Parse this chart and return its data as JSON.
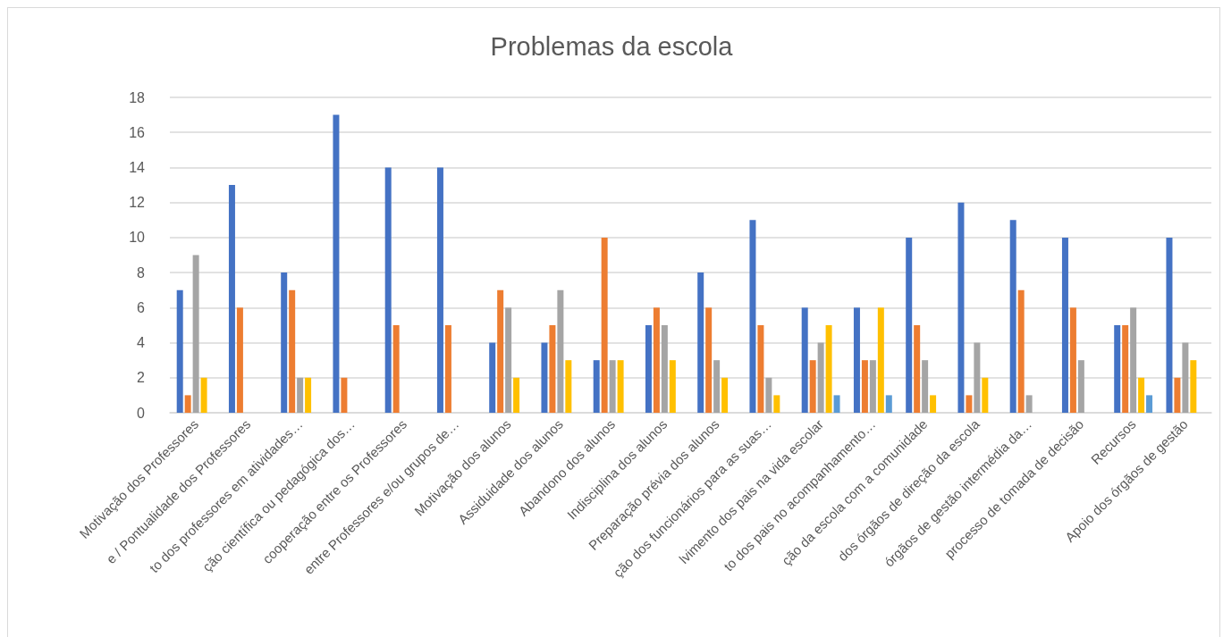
{
  "chart_data": {
    "type": "bar",
    "title": "Problemas da escola",
    "categories": [
      "Motivação dos Professores",
      "e / Pontualidade dos Professores",
      "to dos professores em atividades…",
      "ção científica ou pedagógica dos…",
      "cooperação entre os Professores",
      "entre Professores e/ou grupos de…",
      "Motivação dos alunos",
      "Assiduidade dos alunos",
      "Abandono dos alunos",
      "Indisciplina dos alunos",
      "Preparação prévia dos alunos",
      "ção dos funcionários para as suas…",
      "lvimento dos pais na vida escolar",
      "to dos pais no acompanhamento…",
      "ção da escola com a comunidade",
      "dos órgãos de direção da escola",
      "órgãos de gestão intermédia da…",
      "processo de tomada de decisão",
      "Recursos",
      "Apoio dos órgãos de gestão"
    ],
    "series": [
      {
        "color": "#4472c4",
        "values": [
          7,
          13,
          8,
          17,
          14,
          14,
          4,
          4,
          3,
          5,
          8,
          11,
          6,
          6,
          10,
          12,
          11,
          10,
          5,
          10
        ]
      },
      {
        "color": "#ed7d31",
        "values": [
          1,
          6,
          7,
          2,
          5,
          5,
          7,
          5,
          10,
          6,
          6,
          5,
          3,
          3,
          5,
          1,
          7,
          6,
          5,
          2
        ]
      },
      {
        "color": "#a5a5a5",
        "values": [
          9,
          null,
          2,
          null,
          null,
          null,
          6,
          7,
          3,
          5,
          3,
          2,
          4,
          3,
          3,
          4,
          1,
          3,
          6,
          4
        ]
      },
      {
        "color": "#ffc000",
        "values": [
          2,
          null,
          2,
          null,
          null,
          null,
          2,
          3,
          3,
          3,
          2,
          1,
          5,
          6,
          1,
          2,
          null,
          null,
          2,
          3
        ]
      },
      {
        "color": "#5b9bd5",
        "values": [
          null,
          null,
          null,
          null,
          null,
          null,
          null,
          null,
          null,
          null,
          null,
          null,
          1,
          1,
          null,
          null,
          null,
          null,
          1,
          null
        ]
      }
    ],
    "ylim": [
      0,
      18
    ],
    "yticks": [
      0,
      2,
      4,
      6,
      8,
      10,
      12,
      14,
      16,
      18
    ],
    "grid": "y"
  }
}
